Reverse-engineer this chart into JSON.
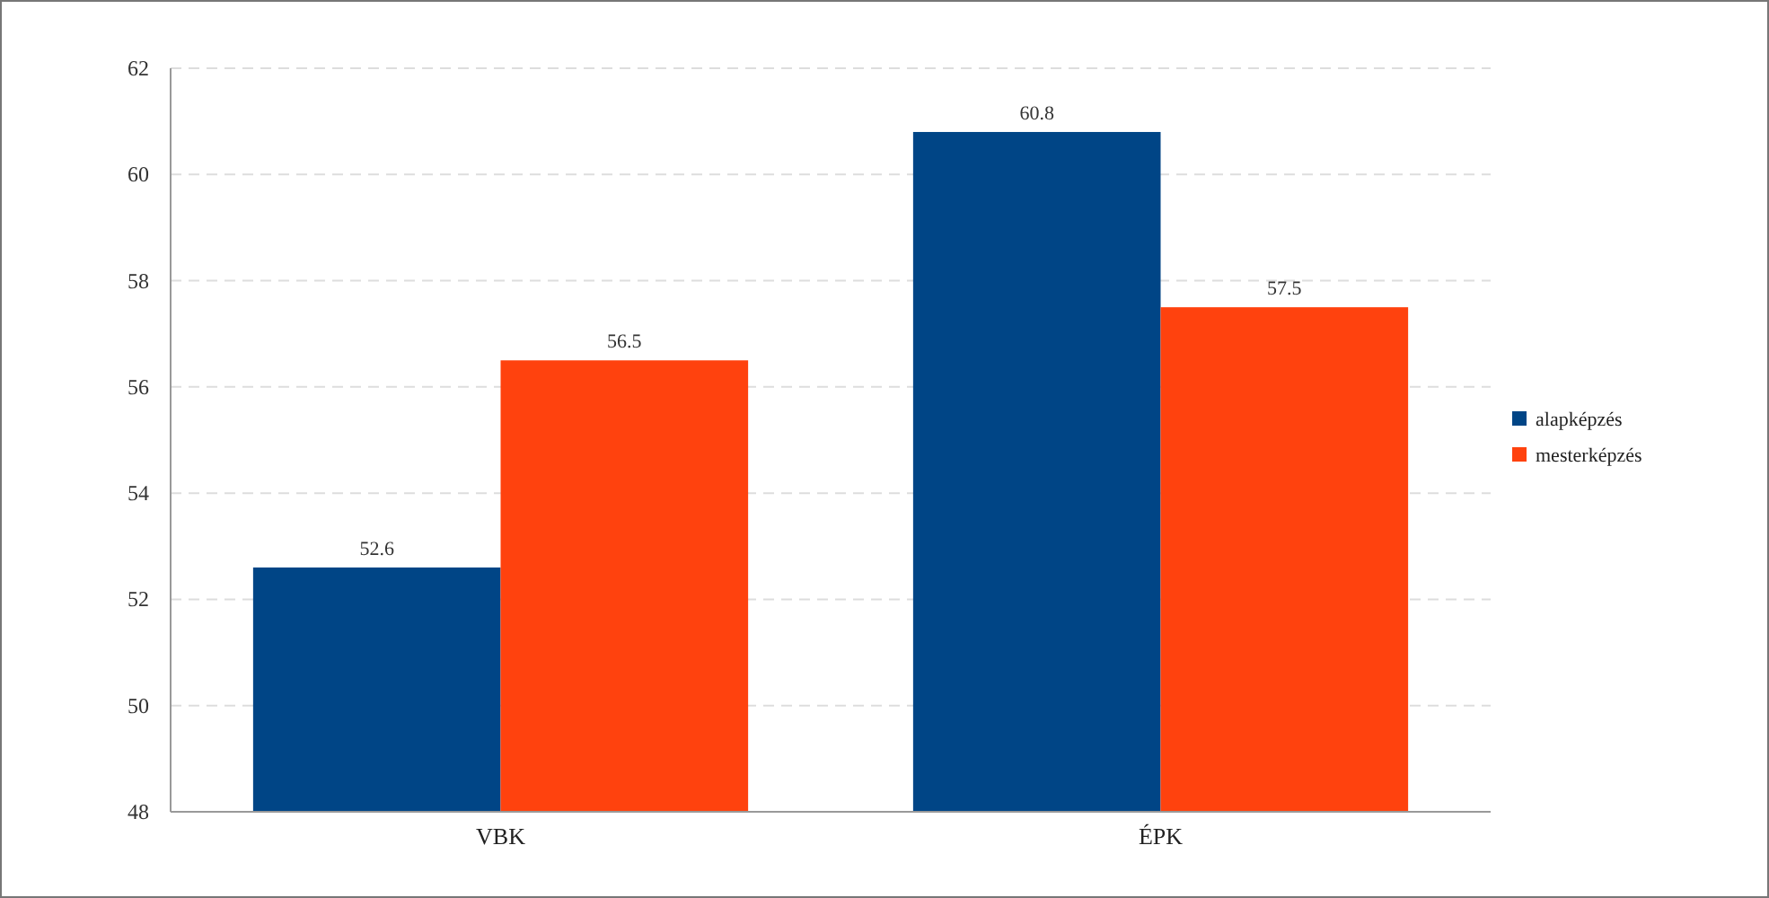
{
  "chart_data": {
    "type": "bar",
    "categories": [
      "VBK",
      "ÉPK"
    ],
    "series": [
      {
        "name": "alapképzés",
        "color": "#004586",
        "values": [
          52.6,
          60.8
        ]
      },
      {
        "name": "mesterképzés",
        "color": "#ff420e",
        "values": [
          56.5,
          57.5
        ]
      }
    ],
    "ylim": [
      48,
      62
    ],
    "yticks": [
      48,
      50,
      52,
      54,
      56,
      58,
      60,
      62
    ],
    "grid": "y",
    "legend": "right",
    "data_labels": true
  }
}
